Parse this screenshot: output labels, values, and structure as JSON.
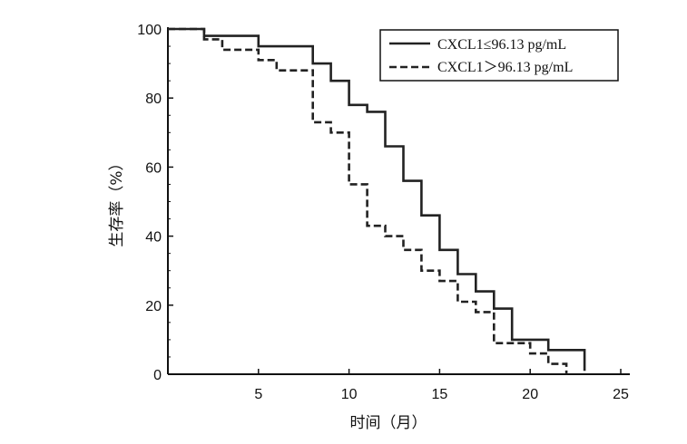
{
  "chart_data": {
    "type": "line",
    "step": true,
    "xlabel": "时间（月）",
    "ylabel": "生存率（%）",
    "xlim": [
      0,
      25
    ],
    "ylim": [
      0,
      100
    ],
    "xticks": [
      5,
      10,
      15,
      20,
      25
    ],
    "yticks": [
      0,
      20,
      40,
      60,
      80,
      100
    ],
    "grid": false,
    "legend_position": "top-right",
    "series": [
      {
        "name": "CXCL1≤96.13 pg/mL",
        "line_style": "solid",
        "x": [
          0,
          2,
          2,
          5,
          5,
          8,
          8,
          9,
          9,
          10,
          10,
          11,
          11,
          12,
          12,
          13,
          13,
          14,
          14,
          15,
          15,
          16,
          16,
          17,
          17,
          18,
          18,
          19,
          19,
          20,
          20,
          21,
          21,
          23,
          23
        ],
        "y": [
          100,
          100,
          98,
          98,
          95,
          95,
          90,
          90,
          85,
          85,
          78,
          78,
          76,
          76,
          66,
          66,
          56,
          56,
          46,
          46,
          36,
          36,
          29,
          29,
          24,
          24,
          19,
          19,
          10,
          10,
          10,
          10,
          7,
          7,
          1
        ]
      },
      {
        "name": "CXCL1＞96.13 pg/mL",
        "line_style": "dashed",
        "x": [
          0,
          2,
          2,
          3,
          3,
          5,
          5,
          6,
          6,
          8,
          8,
          9,
          9,
          10,
          10,
          11,
          11,
          12,
          12,
          13,
          13,
          14,
          14,
          15,
          15,
          16,
          16,
          17,
          17,
          18,
          18,
          20,
          20,
          21,
          21,
          22,
          22
        ],
        "y": [
          100,
          100,
          97,
          97,
          94,
          94,
          91,
          91,
          88,
          88,
          73,
          73,
          70,
          70,
          55,
          55,
          43,
          43,
          40,
          40,
          36,
          36,
          30,
          30,
          27,
          27,
          21,
          21,
          18,
          18,
          9,
          9,
          6,
          6,
          3,
          3,
          0
        ]
      }
    ]
  }
}
